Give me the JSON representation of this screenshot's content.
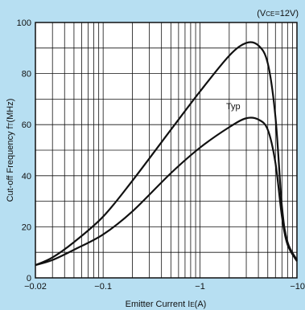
{
  "chart_data": {
    "type": "line",
    "condition": {
      "prefix": "(V",
      "sub": "CE",
      "suffix": "=12V)"
    },
    "xlabel": {
      "main": "Emitter Current I",
      "sub": "E",
      "suffix": "(A)"
    },
    "ylabel": {
      "main": "Cut-off Frequency f",
      "sub": "T",
      "suffix": "(MHz)"
    },
    "x_scale": "log",
    "xlim": [
      -0.02,
      -10
    ],
    "ylim": [
      0,
      100
    ],
    "x_ticks": [
      {
        "value": -0.02,
        "label": "−0.02"
      },
      {
        "value": -0.1,
        "label": "−0.1"
      },
      {
        "value": -1,
        "label": "−1"
      },
      {
        "value": -10,
        "label": "−10"
      }
    ],
    "y_ticks": [
      0,
      20,
      40,
      60,
      80,
      100
    ],
    "grid": true,
    "annotation": {
      "text": "Typ",
      "x": -2.2,
      "y": 66
    },
    "series": [
      {
        "x": [
          -0.02,
          -0.03,
          -0.05,
          -0.1,
          -0.2,
          -0.5,
          -1,
          -2,
          -3,
          -4,
          -5,
          -6,
          -7,
          -8,
          -10
        ],
        "values": [
          5,
          8,
          14,
          24,
          38,
          58,
          73,
          87,
          92,
          91,
          84,
          63,
          28,
          14,
          7
        ]
      },
      {
        "x": [
          -0.02,
          -0.03,
          -0.05,
          -0.1,
          -0.2,
          -0.5,
          -1,
          -2,
          -3,
          -4,
          -5,
          -6,
          -7,
          -8,
          -10
        ],
        "values": [
          5,
          7,
          11,
          17,
          26,
          41,
          51,
          59,
          62.5,
          62,
          58,
          45,
          24,
          13,
          6.5
        ]
      }
    ]
  }
}
